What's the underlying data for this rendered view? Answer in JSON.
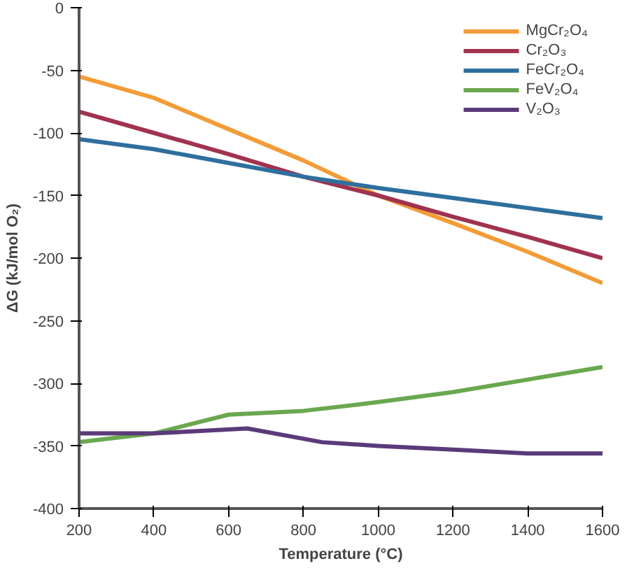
{
  "chart_data": {
    "type": "line",
    "xlabel": "Temperature (°C)",
    "ylabel": "ΔG (kJ/mol O₂)",
    "x": [
      200,
      400,
      600,
      800,
      1000,
      1200,
      1400,
      1600
    ],
    "series": [
      {
        "name": "MgCr₂O₄",
        "color": "#f39c37",
        "values": [
          -55,
          -72,
          -97,
          -122,
          -150,
          -172,
          -195,
          -220
        ]
      },
      {
        "name": "Cr₂O₃",
        "color": "#a0334f",
        "values": [
          -83,
          -100,
          -117,
          -135,
          -150,
          -167,
          -183,
          -200
        ]
      },
      {
        "name": "FeCr₂O₄",
        "color": "#2e6f9e",
        "values": [
          -105,
          -113,
          -124,
          -135,
          -144,
          -152,
          -160,
          -168
        ]
      },
      {
        "name": "FeV₂O₄",
        "color": "#6aa84f",
        "values": [
          -347,
          -340,
          -325,
          -322,
          -315,
          -307,
          -297,
          -287
        ]
      },
      {
        "name": "V₂O₃",
        "color": "#5b3a7a",
        "x": [
          200,
          400,
          650,
          850,
          1000,
          1200,
          1400,
          1600
        ],
        "values": [
          -340,
          -340,
          -336,
          -347,
          -350,
          -353,
          -356,
          -356
        ]
      }
    ],
    "xlim": [
      200,
      1600
    ],
    "ylim": [
      -400,
      0
    ],
    "xticks": [
      200,
      400,
      600,
      800,
      1000,
      1200,
      1400,
      1600
    ],
    "yticks": [
      -400,
      -350,
      -300,
      -250,
      -200,
      -150,
      -100,
      -50,
      0
    ],
    "legend": "top right",
    "grid": false,
    "marker": "none",
    "line_style": "solid"
  }
}
